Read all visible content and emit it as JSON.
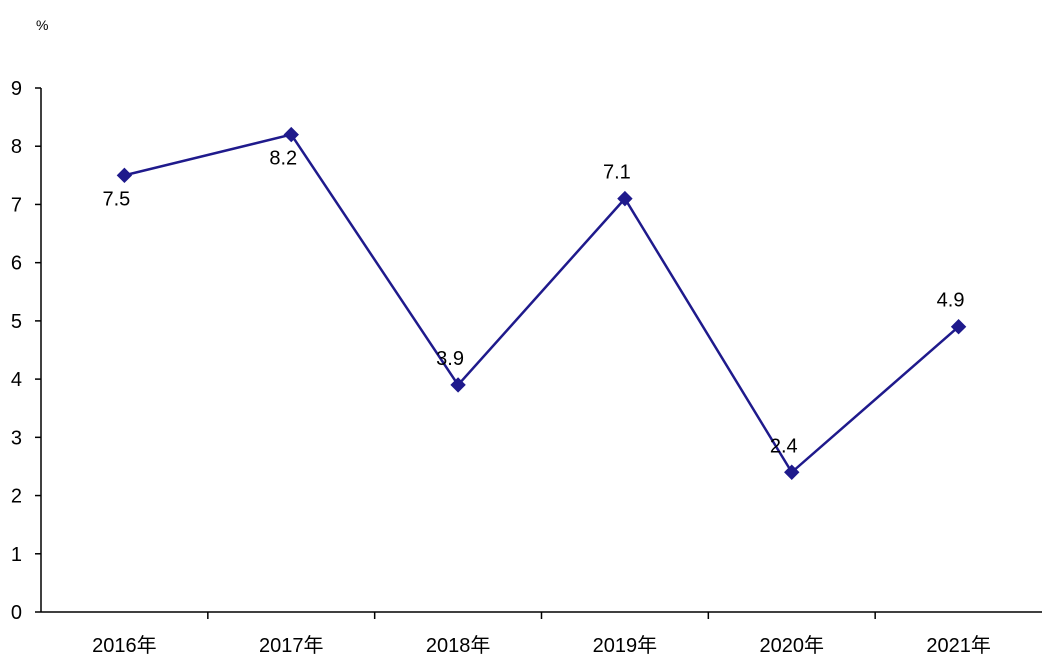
{
  "chart_data": {
    "type": "line",
    "title": "",
    "xlabel": "",
    "ylabel": "%",
    "categories": [
      "2016年",
      "2017年",
      "2018年",
      "2019年",
      "2020年",
      "2021年"
    ],
    "series": [
      {
        "values": [
          7.5,
          8.2,
          3.9,
          7.1,
          2.4,
          4.9
        ],
        "color": "#1f1a8c",
        "marker": "diamond"
      }
    ],
    "data_labels": [
      "7.5",
      "8.2",
      "3.9",
      "7.1",
      "2.4",
      "4.9"
    ],
    "label_positions": [
      "below",
      "below",
      "above",
      "above",
      "above",
      "above"
    ],
    "ylim": [
      0,
      9
    ],
    "yticks": [
      0,
      1,
      2,
      3,
      4,
      5,
      6,
      7,
      8,
      9
    ],
    "ytick_labels": [
      "0",
      "1",
      "2",
      "3",
      "4",
      "5",
      "6",
      "7",
      "8",
      "9"
    ],
    "grid": false,
    "legend": "none"
  }
}
